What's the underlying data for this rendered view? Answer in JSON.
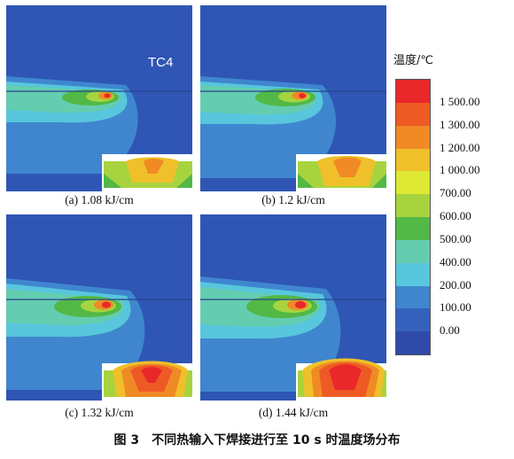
{
  "panels": [
    {
      "id": "a",
      "caption": "(a) 1.08 kJ/cm",
      "material_label": "TC4"
    },
    {
      "id": "b",
      "caption": "(b) 1.2 kJ/cm",
      "material_label": ""
    },
    {
      "id": "c",
      "caption": "(c) 1.32 kJ/cm",
      "material_label": ""
    },
    {
      "id": "d",
      "caption": "(d) 1.44 kJ/cm",
      "material_label": ""
    }
  ],
  "legend": {
    "title": "温度/℃",
    "labels": [
      "1 500.00",
      "1 300.00",
      "1 200.00",
      "1 000.00",
      "700.00",
      "600.00",
      "500.00",
      "400.00",
      "200.00",
      "100.00",
      "0.00"
    ],
    "colors": [
      "#e8282b",
      "#ee5a24",
      "#f08a25",
      "#efc02a",
      "#dde932",
      "#a7d43e",
      "#52b846",
      "#64cdb0",
      "#58c6dc",
      "#3f86cf",
      "#3561bd",
      "#2f4aa8"
    ]
  },
  "figure_caption": "图 3　不同热输入下焊接进行至 10 s 时温度场分布"
}
